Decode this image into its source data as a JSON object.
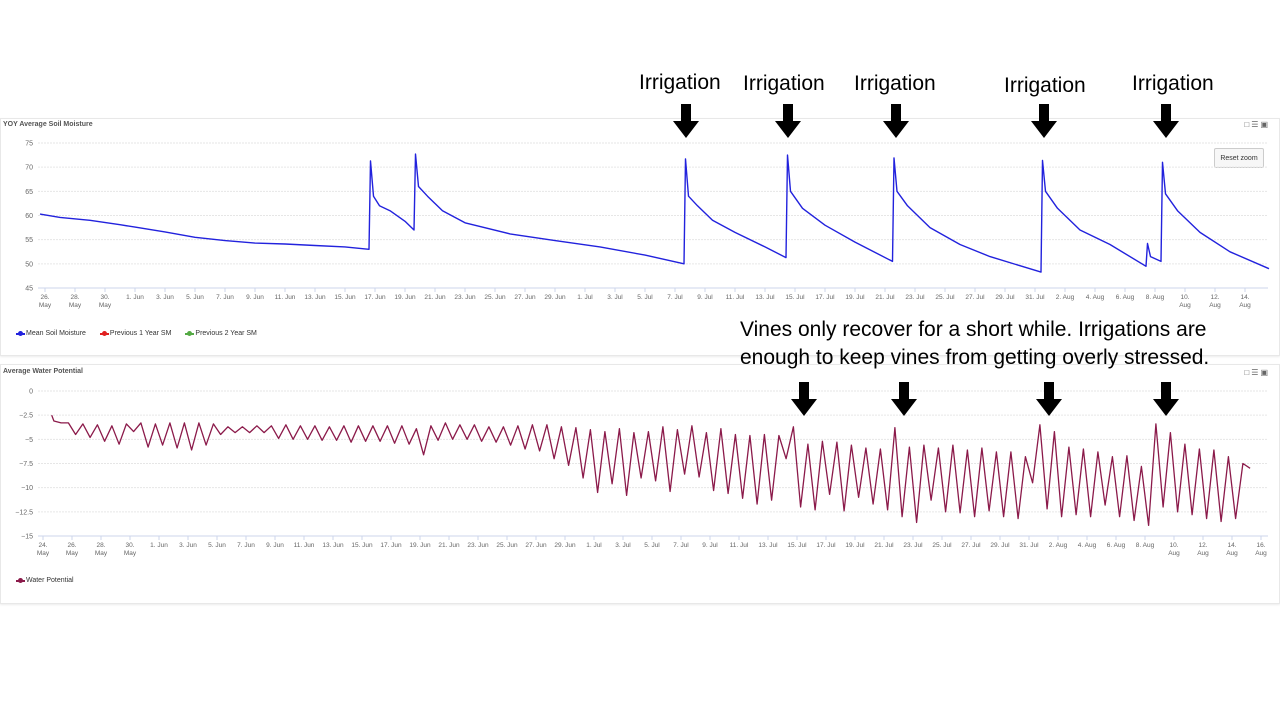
{
  "annotations": {
    "irrigation_label": "Irrigation",
    "note_line1": "Vines only recover for a short while. Irrigations are",
    "note_line2": "enough to keep vines from getting overly stressed."
  },
  "toolbar": {
    "reset_zoom": "Reset zoom",
    "icons": [
      "bar-chart-icon",
      "table-icon",
      "fullscreen-icon"
    ]
  },
  "chart_data": [
    {
      "type": "line",
      "title": "YOY Average Soil Moisture",
      "x_unit": "days since 24 May",
      "xlim": [
        1.67,
        83.6
      ],
      "ylim": [
        45,
        75
      ],
      "y_ticks": [
        75,
        70,
        65,
        60,
        55,
        50,
        45
      ],
      "x_ticks": {
        "start": 2,
        "step": 2,
        "labels": [
          "26. May",
          "28. May",
          "30. May",
          "1. Jun",
          "3. Jun",
          "5. Jun",
          "7. Jun",
          "9. Jun",
          "11. Jun",
          "13. Jun",
          "15. Jun",
          "17. Jun",
          "19. Jun",
          "21. Jun",
          "23. Jun",
          "25. Jun",
          "27. Jun",
          "29. Jun",
          "1. Jul",
          "3. Jul",
          "5. Jul",
          "7. Jul",
          "9. Jul",
          "11. Jul",
          "13. Jul",
          "15. Jul",
          "17. Jul",
          "19. Jul",
          "21. Jul",
          "23. Jul",
          "25. Jul",
          "27. Jul",
          "29. Jul",
          "31. Jul",
          "2. Aug",
          "4. Aug",
          "6. Aug",
          "8. Aug",
          "10. Aug",
          "12. Aug",
          "14. Aug"
        ]
      },
      "grid": true,
      "legend": [
        "Mean Soil Moisture",
        "Previous 1 Year SM",
        "Previous 2 Year SM"
      ],
      "legend_colors": [
        "#2222dd",
        "#e02020",
        "#55aa44"
      ],
      "legend_position": "bottom-left",
      "series": [
        {
          "name": "Mean Soil Moisture",
          "color": "#2222dd",
          "points": [
            [
              1.67,
              60.3
            ],
            [
              3,
              59.6
            ],
            [
              5,
              59
            ],
            [
              7,
              58.1
            ],
            [
              8,
              57.6
            ],
            [
              10,
              56.6
            ],
            [
              12,
              55.5
            ],
            [
              14,
              54.8
            ],
            [
              16,
              54.3
            ],
            [
              18,
              54.1
            ],
            [
              20,
              53.8
            ],
            [
              22,
              53.5
            ],
            [
              23.6,
              53.0
            ],
            [
              23.7,
              71.3
            ],
            [
              23.9,
              64
            ],
            [
              24.3,
              62
            ],
            [
              25,
              61
            ],
            [
              26,
              58.8
            ],
            [
              26.6,
              57
            ],
            [
              26.7,
              72.7
            ],
            [
              26.9,
              66
            ],
            [
              27.5,
              64
            ],
            [
              28.5,
              61
            ],
            [
              30,
              58.5
            ],
            [
              33,
              56.2
            ],
            [
              36,
              54.8
            ],
            [
              39,
              53.5
            ],
            [
              42,
              51.8
            ],
            [
              44.6,
              50
            ],
            [
              44.7,
              71.7
            ],
            [
              44.9,
              64
            ],
            [
              45.5,
              62
            ],
            [
              46.5,
              59
            ],
            [
              48,
              56.5
            ],
            [
              50,
              53.5
            ],
            [
              51.4,
              51.3
            ],
            [
              51.5,
              72.5
            ],
            [
              51.7,
              65
            ],
            [
              52.5,
              61.5
            ],
            [
              54,
              58
            ],
            [
              56,
              54.5
            ],
            [
              58.5,
              50.5
            ],
            [
              58.6,
              71.9
            ],
            [
              58.8,
              65
            ],
            [
              59.5,
              62
            ],
            [
              61,
              57.5
            ],
            [
              63,
              54
            ],
            [
              65,
              51.5
            ],
            [
              68.4,
              48.3
            ],
            [
              68.5,
              71.4
            ],
            [
              68.7,
              65
            ],
            [
              69.5,
              61.5
            ],
            [
              71,
              57
            ],
            [
              73,
              54
            ],
            [
              75.4,
              49.5
            ],
            [
              75.5,
              54.2
            ],
            [
              75.7,
              51.5
            ],
            [
              76.4,
              50.5
            ],
            [
              76.5,
              71
            ],
            [
              76.7,
              64.5
            ],
            [
              77.5,
              61
            ],
            [
              79,
              56.5
            ],
            [
              81,
              52.5
            ],
            [
              83.6,
              49
            ]
          ]
        }
      ]
    },
    {
      "type": "line",
      "title": "Average Water Potential",
      "x_unit": "days since 24 May",
      "xlim": [
        0,
        84
      ],
      "ylim": [
        -15,
        0
      ],
      "y_ticks": [
        0,
        -2.5,
        -5,
        -7.5,
        -10,
        -12.5,
        -15
      ],
      "x_ticks": {
        "start": 0,
        "step": 2,
        "labels": [
          "24. May",
          "26. May",
          "28. May",
          "30. May",
          "1. Jun",
          "3. Jun",
          "5. Jun",
          "7. Jun",
          "9. Jun",
          "11. Jun",
          "13. Jun",
          "15. Jun",
          "17. Jun",
          "19. Jun",
          "21. Jun",
          "23. Jun",
          "25. Jun",
          "27. Jun",
          "29. Jun",
          "1. Jul",
          "3. Jul",
          "5. Jul",
          "7. Jul",
          "9. Jul",
          "11. Jul",
          "13. Jul",
          "15. Jul",
          "17. Jul",
          "19. Jul",
          "21. Jul",
          "23. Jul",
          "25. Jul",
          "27. Jul",
          "29. Jul",
          "31. Jul",
          "2. Aug",
          "4. Aug",
          "6. Aug",
          "8. Aug",
          "10. Aug",
          "12. Aug",
          "14. Aug",
          "16. Aug"
        ]
      },
      "grid": true,
      "legend": [
        "Water Potential"
      ],
      "legend_colors": [
        "#8b1a4a"
      ],
      "legend_position": "bottom-left",
      "series": [
        {
          "name": "Water Potential",
          "color": "#8b1a4a",
          "start": [
            0.6,
            -2.5
          ],
          "daily_max": [
            -3.1,
            -3.3,
            -3.4,
            -3.5,
            -3.6,
            -3.4,
            -3.3,
            -3.4,
            -3.3,
            -3.3,
            -3.3,
            -3.4,
            -3.7,
            -3.7,
            -3.6,
            -3.6,
            -3.5,
            -3.6,
            -3.6,
            -3.7,
            -3.6,
            -3.6,
            -3.6,
            -3.6,
            -3.6,
            -3.9,
            -3.6,
            -3.3,
            -3.5,
            -3.5,
            -3.7,
            -3.7,
            -3.6,
            -3.5,
            -3.5,
            -3.7,
            -3.8,
            -4.0,
            -4.2,
            -3.9,
            -4.3,
            -4.2,
            -3.7,
            -4.0,
            -3.6,
            -4.3,
            -3.9,
            -4.5,
            -4.6,
            -4.5,
            -4.6,
            -3.7,
            -5.5,
            -5.2,
            -5.3,
            -5.6,
            -5.9,
            -6.0,
            -3.8,
            -5.8,
            -5.6,
            -5.9,
            -5.6,
            -6.1,
            -5.9,
            -6.3,
            -6.3,
            -6.8,
            -3.5,
            -4.2,
            -5.8,
            -6.0,
            -6.3,
            -6.8,
            -6.7,
            -7.8,
            -3.4,
            -4.3,
            -5.5,
            -6.0,
            -6.1,
            -6.8,
            -7.5
          ],
          "daily_min": [
            -3.3,
            -4.5,
            -4.8,
            -5.2,
            -5.5,
            -4.2,
            -5.8,
            -5.6,
            -5.9,
            -6.1,
            -5.6,
            -4.5,
            -4.3,
            -4.3,
            -4.3,
            -4.9,
            -5.0,
            -5.0,
            -5.1,
            -5.1,
            -5.3,
            -5.2,
            -5.2,
            -5.4,
            -5.5,
            -6.6,
            -5.1,
            -5.0,
            -5.0,
            -5.2,
            -5.3,
            -5.6,
            -6.0,
            -6.2,
            -7.0,
            -7.7,
            -9.0,
            -10.5,
            -9.6,
            -10.8,
            -9.0,
            -9.3,
            -10.4,
            -8.6,
            -8.9,
            -10.3,
            -10.6,
            -11.1,
            -11.7,
            -11.3,
            -7.0,
            -12.0,
            -12.3,
            -10.7,
            -12.4,
            -11.0,
            -11.7,
            -12.3,
            -13.0,
            -13.6,
            -11.3,
            -12.5,
            -12.6,
            -13.0,
            -12.4,
            -13.0,
            -13.2,
            -9.5,
            -12.2,
            -13.0,
            -12.8,
            -13.0,
            -11.8,
            -13.0,
            -13.4,
            -13.9,
            -12.0,
            -12.5,
            -12.8,
            -13.2,
            -13.5,
            -13.2,
            -8.0
          ]
        }
      ]
    }
  ]
}
